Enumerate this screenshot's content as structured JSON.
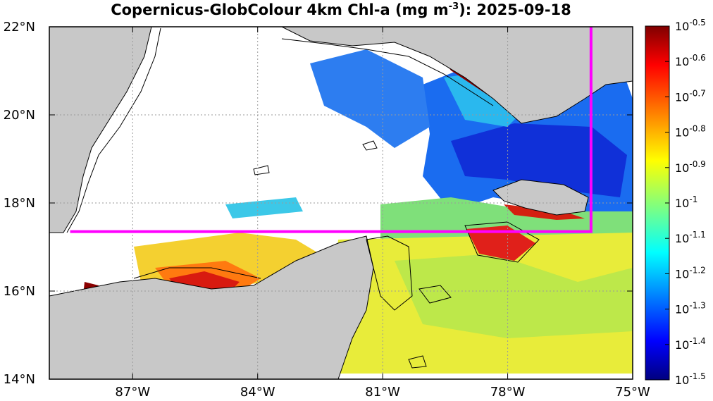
{
  "title": {
    "prefix": "Copernicus-GlobColour 4km Chl-a (mg m",
    "exponent": "-3",
    "suffix": "): 2025-09-18"
  },
  "map": {
    "lon_range": [
      -89,
      -75
    ],
    "lat_range": [
      14,
      22
    ],
    "lon_ticks": [
      {
        "value": -87,
        "label": "87°W"
      },
      {
        "value": -84,
        "label": "84°W"
      },
      {
        "value": -81,
        "label": "81°W"
      },
      {
        "value": -78,
        "label": "78°W"
      },
      {
        "value": -75,
        "label": "75°W"
      }
    ],
    "lat_ticks": [
      {
        "value": 22,
        "label": "22°N"
      },
      {
        "value": 20,
        "label": "20°N"
      },
      {
        "value": 18,
        "label": "18°N"
      },
      {
        "value": 16,
        "label": "16°N"
      },
      {
        "value": 14,
        "label": "14°N"
      }
    ],
    "grid": "dotted",
    "land_color": "#c8c8c8",
    "no_data_color": "#ffffff",
    "region_box": {
      "lon_min": -88.5,
      "lon_max": -76.0,
      "lat_min": 17.35,
      "lat_max": 22.0,
      "color": "#ff00ff"
    }
  },
  "colorbar": {
    "scale": "log10",
    "colormap": "jet",
    "range_exponent": [
      -1.5,
      -0.5
    ],
    "ticks": [
      {
        "base": "10",
        "exp": "-0.5"
      },
      {
        "base": "10",
        "exp": "-0.6"
      },
      {
        "base": "10",
        "exp": "-0.7"
      },
      {
        "base": "10",
        "exp": "-0.8"
      },
      {
        "base": "10",
        "exp": "-0.9"
      },
      {
        "base": "10",
        "exp": "-1"
      },
      {
        "base": "10",
        "exp": "-1.1"
      },
      {
        "base": "10",
        "exp": "-1.2"
      },
      {
        "base": "10",
        "exp": "-1.3"
      },
      {
        "base": "10",
        "exp": "-1.4"
      },
      {
        "base": "10",
        "exp": "-1.5"
      }
    ]
  }
}
